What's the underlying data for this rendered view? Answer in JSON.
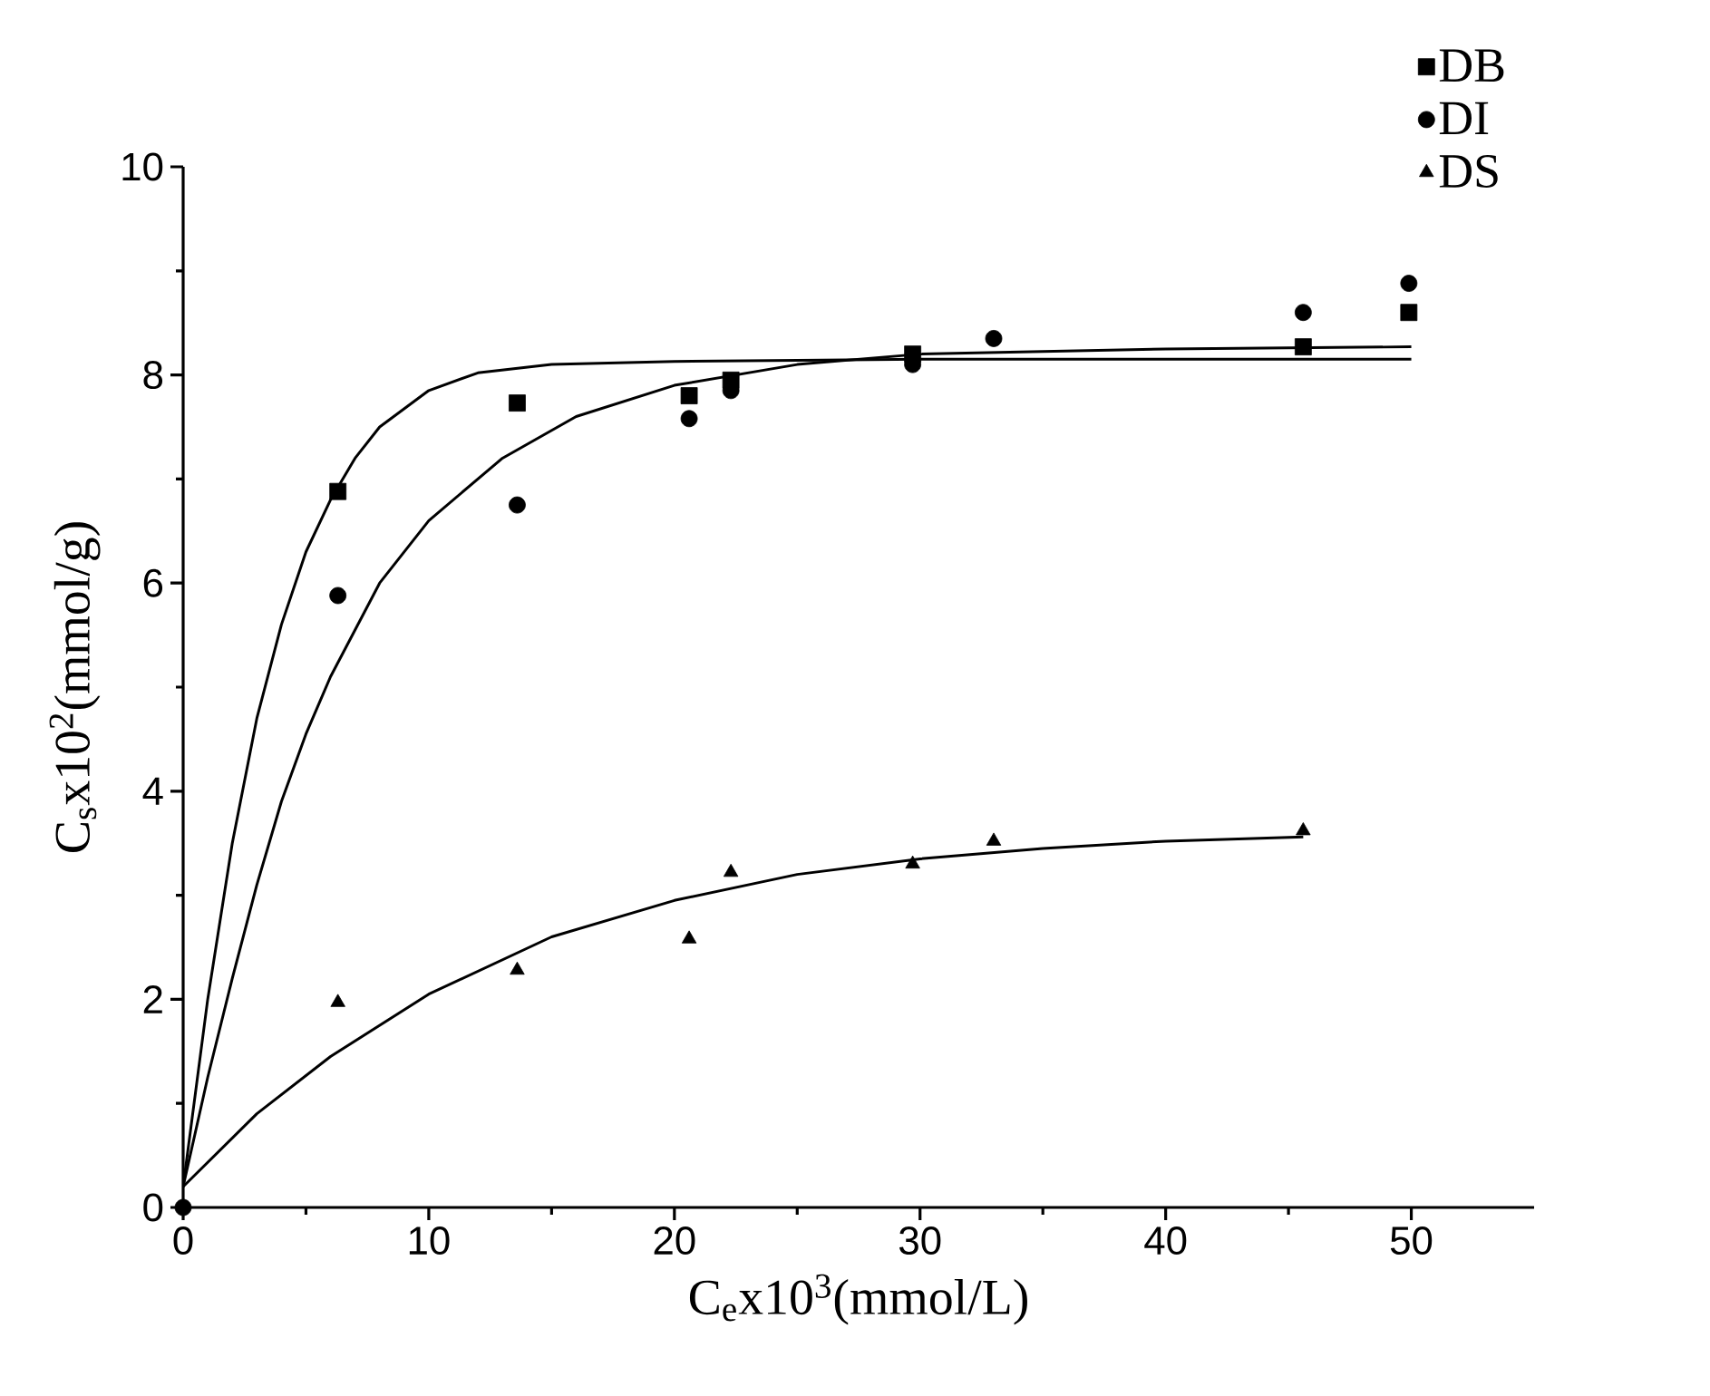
{
  "chart_data": {
    "type": "scatter",
    "xlabel": "C$_{e}$x10$^{3}$(mmol/L)",
    "ylabel": "C$_{s}$x10$^{2}$(mmol/g)",
    "xlim": [
      0,
      55
    ],
    "ylim": [
      0,
      10
    ],
    "xticks": [
      0,
      10,
      20,
      30,
      40,
      50
    ],
    "yticks": [
      0,
      2,
      4,
      6,
      8,
      10
    ],
    "grid": false,
    "legend": "top right",
    "line_style": "solid",
    "series": [
      {
        "name": "DB",
        "marker": "square",
        "color": "#000000",
        "x": [
          6.3,
          13.6,
          20.6,
          22.3,
          29.7,
          45.6,
          49.9
        ],
        "values": [
          6.88,
          7.73,
          7.8,
          7.95,
          8.2,
          8.27,
          8.6
        ]
      },
      {
        "name": "DI",
        "marker": "circle",
        "color": "#000000",
        "x": [
          0,
          6.3,
          13.6,
          20.6,
          22.3,
          29.7,
          33.0,
          45.6,
          49.9
        ],
        "values": [
          0,
          5.88,
          6.75,
          7.58,
          7.85,
          8.1,
          8.35,
          8.6,
          8.88
        ]
      },
      {
        "name": "DS",
        "marker": "triangle",
        "color": "#000000",
        "x": [
          6.3,
          13.6,
          20.6,
          22.3,
          29.7,
          33.0,
          45.6
        ],
        "values": [
          1.97,
          2.28,
          2.58,
          3.22,
          3.3,
          3.52,
          3.62
        ]
      },
      {
        "type": "line",
        "marker": "none",
        "color": "#000000",
        "x": [
          0,
          1,
          2,
          3,
          4,
          5,
          6,
          7,
          8,
          10,
          12,
          15,
          20,
          25,
          30,
          40,
          50
        ],
        "values": [
          0.2,
          2.0,
          3.5,
          4.7,
          5.6,
          6.3,
          6.8,
          7.2,
          7.5,
          7.85,
          8.02,
          8.1,
          8.13,
          8.14,
          8.15,
          8.15,
          8.15
        ]
      },
      {
        "type": "line",
        "marker": "none",
        "color": "#000000",
        "x": [
          0,
          1,
          2,
          3,
          4,
          5,
          6,
          8,
          10,
          13,
          16,
          20,
          25,
          30,
          40,
          50
        ],
        "values": [
          0.2,
          1.25,
          2.2,
          3.1,
          3.9,
          4.55,
          5.1,
          6.0,
          6.6,
          7.2,
          7.6,
          7.9,
          8.1,
          8.2,
          8.25,
          8.27
        ]
      },
      {
        "type": "line",
        "marker": "none",
        "color": "#000000",
        "x": [
          0,
          3,
          6,
          10,
          15,
          20,
          25,
          30,
          35,
          40,
          45.6
        ],
        "values": [
          0.2,
          0.9,
          1.45,
          2.05,
          2.6,
          2.95,
          3.2,
          3.35,
          3.45,
          3.52,
          3.56
        ]
      }
    ]
  }
}
